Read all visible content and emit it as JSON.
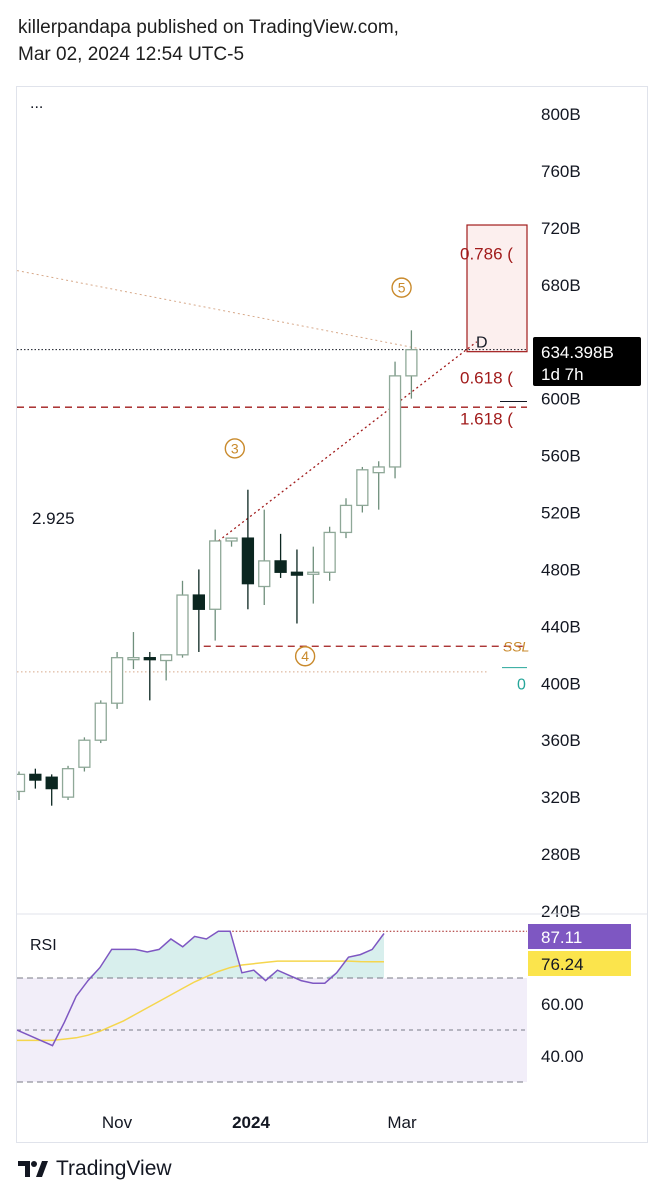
{
  "header": {
    "line1": "killerpandapa published on TradingView.com,",
    "line2": "Mar 02, 2024 12:54 UTC-5"
  },
  "menu_dots": "...",
  "footer": {
    "brand": "TradingView"
  },
  "chart_data": [
    {
      "type": "candlestick",
      "title": "",
      "ylabel": "",
      "ylim": [
        240,
        810
      ],
      "y_ticks": [
        "800B",
        "760B",
        "720B",
        "680B",
        "600B",
        "560B",
        "520B",
        "480B",
        "440B",
        "400B",
        "360B",
        "320B",
        "280B",
        "240B"
      ],
      "x_ticks": [
        "Nov",
        "2024",
        "Mar"
      ],
      "current_price_label": "634.398B",
      "countdown_label": "1d 7h",
      "current_price": 634.4,
      "left_label": "2.925",
      "candles": [
        {
          "o": 324,
          "h": 338,
          "l": 318,
          "c": 336
        },
        {
          "o": 336,
          "h": 340,
          "l": 326,
          "c": 332
        },
        {
          "o": 334,
          "h": 336,
          "l": 314,
          "c": 326
        },
        {
          "o": 320,
          "h": 342,
          "l": 318,
          "c": 340
        },
        {
          "o": 341,
          "h": 362,
          "l": 338,
          "c": 360
        },
        {
          "o": 360,
          "h": 388,
          "l": 358,
          "c": 386
        },
        {
          "o": 386,
          "h": 422,
          "l": 382,
          "c": 418
        },
        {
          "o": 417,
          "h": 436,
          "l": 410,
          "c": 418
        },
        {
          "o": 418,
          "h": 422,
          "l": 388,
          "c": 417
        },
        {
          "o": 416,
          "h": 420,
          "l": 402,
          "c": 420
        },
        {
          "o": 420,
          "h": 472,
          "l": 418,
          "c": 462
        },
        {
          "o": 462,
          "h": 480,
          "l": 422,
          "c": 452
        },
        {
          "o": 452,
          "h": 508,
          "l": 430,
          "c": 500
        },
        {
          "o": 500,
          "h": 502,
          "l": 496,
          "c": 502
        },
        {
          "o": 502,
          "h": 536,
          "l": 452,
          "c": 470
        },
        {
          "o": 468,
          "h": 522,
          "l": 455,
          "c": 486
        },
        {
          "o": 486,
          "h": 505,
          "l": 474,
          "c": 478
        },
        {
          "o": 478,
          "h": 494,
          "l": 442,
          "c": 476
        },
        {
          "o": 478,
          "h": 496,
          "l": 456,
          "c": 478
        },
        {
          "o": 478,
          "h": 510,
          "l": 472,
          "c": 506
        },
        {
          "o": 506,
          "h": 530,
          "l": 502,
          "c": 525
        },
        {
          "o": 525,
          "h": 552,
          "l": 520,
          "c": 550
        },
        {
          "o": 548,
          "h": 556,
          "l": 522,
          "c": 552
        },
        {
          "o": 552,
          "h": 626,
          "l": 544,
          "c": 616
        },
        {
          "o": 616,
          "h": 648,
          "l": 600,
          "c": 634.4
        }
      ],
      "wave_labels": [
        {
          "label": "3",
          "x_index": 13.2,
          "y": 565
        },
        {
          "label": "4",
          "x_index": 17.5,
          "y": 419
        },
        {
          "label": "5",
          "x_index": 23.4,
          "y": 678
        }
      ],
      "fib_levels": [
        {
          "label": "0.786 (",
          "y": 702
        },
        {
          "label": "0.618 (",
          "y": 615
        },
        {
          "label": "1.618 (",
          "y": 586
        }
      ],
      "point_label": "D",
      "ssl_label": "SSL",
      "teal_label": "0",
      "dashed_levels": [
        {
          "y": 594,
          "color": "#a11b1b"
        },
        {
          "y": 426,
          "color": "#a11b1b"
        }
      ]
    },
    {
      "type": "line",
      "title": "RSI",
      "ylim": [
        20,
        100
      ],
      "y_ticks": [
        "60.00",
        "40.00"
      ],
      "levels": [
        70,
        50,
        30
      ],
      "rsi_label": "87.11",
      "ma_label": "76.24",
      "series": [
        {
          "color": "#7e57c2",
          "values": [
            50,
            48,
            46,
            44,
            53,
            63,
            69,
            74,
            81,
            81,
            81,
            80,
            81,
            85,
            82,
            86,
            85,
            88,
            88,
            72,
            73,
            69,
            73,
            71,
            69,
            68,
            68,
            72,
            78,
            79,
            81,
            87.11
          ]
        },
        {
          "color": "#f5d64d",
          "values": [
            46,
            46,
            46,
            46,
            46.5,
            47,
            48,
            49.5,
            51.5,
            53.5,
            56,
            58.5,
            61,
            63.5,
            66,
            68.5,
            70.5,
            72.5,
            74,
            75,
            75.5,
            76,
            76.5,
            76.5,
            76.5,
            76.5,
            76.5,
            76.5,
            76.5,
            76.3,
            76.24,
            76.24
          ]
        }
      ]
    }
  ]
}
